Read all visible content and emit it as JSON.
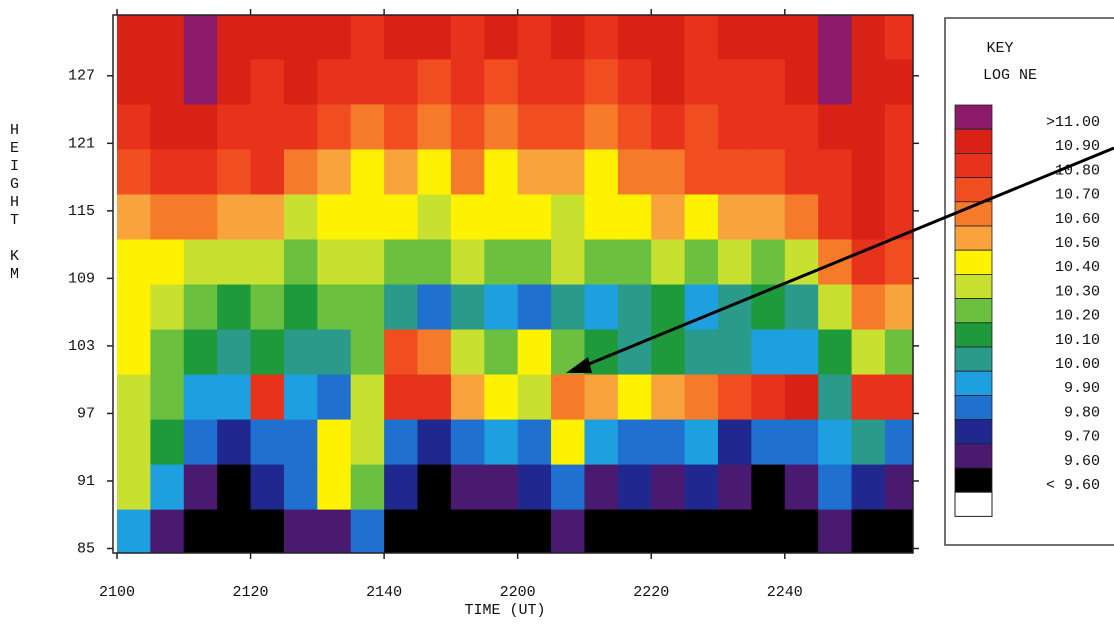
{
  "chart_data": {
    "type": "heatmap",
    "x_label": "TIME (UT)",
    "y_label": "HEIGHT KM",
    "legend_title": "KEY",
    "legend_subtitle": "LOG NE",
    "xlim": [
      -0.6,
      119.2
    ],
    "ylim": [
      84.6,
      132.4
    ],
    "xticks": [
      {
        "value": 0,
        "label": "2100"
      },
      {
        "value": 20,
        "label": "2120"
      },
      {
        "value": 40,
        "label": "2140"
      },
      {
        "value": 60,
        "label": "2200"
      },
      {
        "value": 80,
        "label": "2220"
      },
      {
        "value": 100,
        "label": "2240"
      }
    ],
    "yticks": [
      85,
      91,
      97,
      103,
      109,
      115,
      121,
      127
    ],
    "levels": [
      {
        "value": 11.0,
        "label": ">11.00",
        "color": "#8b1a6b"
      },
      {
        "value": 10.9,
        "label": "10.90",
        "color": "#d92216"
      },
      {
        "value": 10.8,
        "label": "10.80",
        "color": "#e8331c"
      },
      {
        "value": 10.7,
        "label": "10.70",
        "color": "#f04e20"
      },
      {
        "value": 10.6,
        "label": "10.60",
        "color": "#f57a2a"
      },
      {
        "value": 10.5,
        "label": "10.50",
        "color": "#f8a33c"
      },
      {
        "value": 10.4,
        "label": "10.40",
        "color": "#fff200"
      },
      {
        "value": 10.3,
        "label": "10.30",
        "color": "#c8e030"
      },
      {
        "value": 10.2,
        "label": "10.20",
        "color": "#6cc040"
      },
      {
        "value": 10.1,
        "label": "10.10",
        "color": "#1e9a3a"
      },
      {
        "value": 10.0,
        "label": "10.00",
        "color": "#2a9a8a"
      },
      {
        "value": 9.9,
        "label": "9.90",
        "color": "#1ea0e0"
      },
      {
        "value": 9.8,
        "label": "9.80",
        "color": "#2070d0"
      },
      {
        "value": 9.7,
        "label": "9.70",
        "color": "#202890"
      },
      {
        "value": 9.6,
        "label": "9.60",
        "color": "#4a1a70"
      },
      {
        "value": 9.6,
        "label": "< 9.60",
        "color": "#000000"
      }
    ],
    "x": [
      2.5,
      7.5,
      12.5,
      17.5,
      22.5,
      27.5,
      32.5,
      37.5,
      42.5,
      47.5,
      52.5,
      57.5,
      62.5,
      67.5,
      72.5,
      77.5,
      82.5,
      87.5,
      92.5,
      97.5,
      102.5,
      107.5,
      112.5,
      117.5
    ],
    "y": [
      86.5,
      90.5,
      94.5,
      98.5,
      102.5,
      106.5,
      110.5,
      114.5,
      118.5,
      122.5,
      126.5,
      130.5
    ],
    "z": [
      [
        9.9,
        9.6,
        9.5,
        9.5,
        9.5,
        9.6,
        9.6,
        9.8,
        9.5,
        9.5,
        9.5,
        9.5,
        9.5,
        9.6,
        9.5,
        9.5,
        9.5,
        9.5,
        9.5,
        9.5,
        9.5,
        9.6,
        9.5,
        9.5
      ],
      [
        10.3,
        9.9,
        9.6,
        9.5,
        9.7,
        9.8,
        10.4,
        10.2,
        9.7,
        9.5,
        9.6,
        9.6,
        9.7,
        9.8,
        9.6,
        9.7,
        9.6,
        9.7,
        9.6,
        9.5,
        9.6,
        9.8,
        9.7,
        9.6
      ],
      [
        10.3,
        10.1,
        9.8,
        9.7,
        9.8,
        9.8,
        10.4,
        10.3,
        9.8,
        9.7,
        9.8,
        9.9,
        9.8,
        10.4,
        9.9,
        9.8,
        9.8,
        9.9,
        9.7,
        9.8,
        9.8,
        9.9,
        10.0,
        9.8
      ],
      [
        10.3,
        10.2,
        9.9,
        9.9,
        10.8,
        9.9,
        9.8,
        10.3,
        10.8,
        10.8,
        10.5,
        10.4,
        10.3,
        10.6,
        10.5,
        10.4,
        10.5,
        10.6,
        10.7,
        10.8,
        10.9,
        10.0,
        10.8,
        10.8
      ],
      [
        10.4,
        10.2,
        10.1,
        10.0,
        10.1,
        10.0,
        10.0,
        10.2,
        10.7,
        10.6,
        10.3,
        10.2,
        10.4,
        10.2,
        10.1,
        10.0,
        10.1,
        10.0,
        10.0,
        9.9,
        9.9,
        10.1,
        10.3,
        10.2
      ],
      [
        10.4,
        10.3,
        10.2,
        10.1,
        10.2,
        10.1,
        10.2,
        10.2,
        10.0,
        9.8,
        10.0,
        9.9,
        9.8,
        10.0,
        9.9,
        10.0,
        10.1,
        9.9,
        10.0,
        10.1,
        10.0,
        10.3,
        10.6,
        10.5
      ],
      [
        10.4,
        10.4,
        10.3,
        10.3,
        10.3,
        10.2,
        10.3,
        10.3,
        10.2,
        10.2,
        10.3,
        10.2,
        10.2,
        10.3,
        10.2,
        10.2,
        10.3,
        10.2,
        10.3,
        10.2,
        10.3,
        10.6,
        10.8,
        10.7
      ],
      [
        10.5,
        10.6,
        10.6,
        10.5,
        10.5,
        10.3,
        10.4,
        10.4,
        10.4,
        10.3,
        10.4,
        10.4,
        10.4,
        10.3,
        10.4,
        10.4,
        10.5,
        10.4,
        10.5,
        10.5,
        10.6,
        10.8,
        10.9,
        10.8
      ],
      [
        10.7,
        10.8,
        10.8,
        10.7,
        10.8,
        10.6,
        10.5,
        10.4,
        10.5,
        10.4,
        10.6,
        10.4,
        10.5,
        10.5,
        10.4,
        10.6,
        10.6,
        10.7,
        10.7,
        10.7,
        10.8,
        10.8,
        10.9,
        10.8
      ],
      [
        10.8,
        10.9,
        10.9,
        10.8,
        10.8,
        10.8,
        10.7,
        10.6,
        10.7,
        10.6,
        10.7,
        10.6,
        10.7,
        10.7,
        10.6,
        10.7,
        10.8,
        10.7,
        10.8,
        10.8,
        10.8,
        10.9,
        10.9,
        10.8
      ],
      [
        10.9,
        10.9,
        11.0,
        10.9,
        10.8,
        10.9,
        10.8,
        10.8,
        10.8,
        10.7,
        10.8,
        10.7,
        10.8,
        10.8,
        10.7,
        10.8,
        10.9,
        10.8,
        10.8,
        10.8,
        10.9,
        11.0,
        10.9,
        10.9
      ],
      [
        10.9,
        10.9,
        11.0,
        10.9,
        10.9,
        10.9,
        10.9,
        10.8,
        10.9,
        10.9,
        10.8,
        10.9,
        10.8,
        10.9,
        10.8,
        10.9,
        10.9,
        10.8,
        10.9,
        10.9,
        10.9,
        11.0,
        10.9,
        10.8
      ]
    ]
  }
}
